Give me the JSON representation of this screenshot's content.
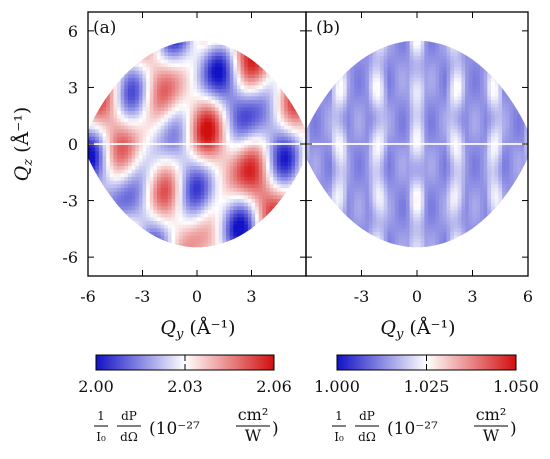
{
  "figure": {
    "y_axis_symbol": "Q",
    "y_axis_subscript": "z",
    "y_axis_unit": "(Å⁻¹)",
    "x_axis_symbol": "Q",
    "x_axis_subscript": "y",
    "x_axis_unit": "(Å⁻¹)"
  },
  "chart_data": [
    {
      "type": "heatmap",
      "panel_label": "(a)",
      "xlabel": "Q_y (Å^-1)",
      "ylabel": "Q_z (Å^-1)",
      "xlim": [
        -6,
        6
      ],
      "ylim": [
        -7,
        7
      ],
      "x_ticks": [
        "-6",
        "-3",
        "0",
        "3"
      ],
      "x_tick_values": [
        -6,
        -3,
        0,
        3
      ],
      "y_ticks": [
        "6",
        "3",
        "0",
        "-3",
        "-6"
      ],
      "y_tick_values": [
        6,
        3,
        0,
        -3,
        -6
      ],
      "colorbar": {
        "min": 2.0,
        "max": 2.06,
        "tick_labels": [
          "2.00",
          "2.03",
          "2.06"
        ],
        "label": "(1/I0)(dP/dΩ) (10^-27 cm²/W)",
        "colors": [
          "#1414c8",
          "#ffffff",
          "#d20f0f"
        ]
      },
      "pattern": "diagonal stripe modulation, mixed red and blue lobes, values spanning the full colorbar range"
    },
    {
      "type": "heatmap",
      "panel_label": "(b)",
      "xlabel": "Q_y (Å^-1)",
      "ylabel": "Q_z (Å^-1)",
      "xlim": [
        -6,
        6
      ],
      "ylim": [
        -7,
        7
      ],
      "x_ticks": [
        "-3",
        "0",
        "3",
        "6"
      ],
      "x_tick_values": [
        -3,
        0,
        3,
        6
      ],
      "colorbar": {
        "min": 1.0,
        "max": 1.05,
        "tick_labels": [
          "1.000",
          "1.025",
          "1.050"
        ],
        "label": "(1/I0)(dP/dΩ) (10^-27 cm²/W)",
        "colors": [
          "#1414c8",
          "#ffffff",
          "#d20f0f"
        ]
      },
      "pattern": "vertical stripes along Q_z, mostly blue with pale white-pink bands"
    }
  ],
  "colorbar_label": {
    "numerator_1": "1",
    "denominator_1": "I₀",
    "numerator_2": "dP",
    "denominator_2": "dΩ",
    "power": "(10⁻²⁷",
    "unit_num": "cm²",
    "unit_den": "W",
    "close": ")"
  }
}
